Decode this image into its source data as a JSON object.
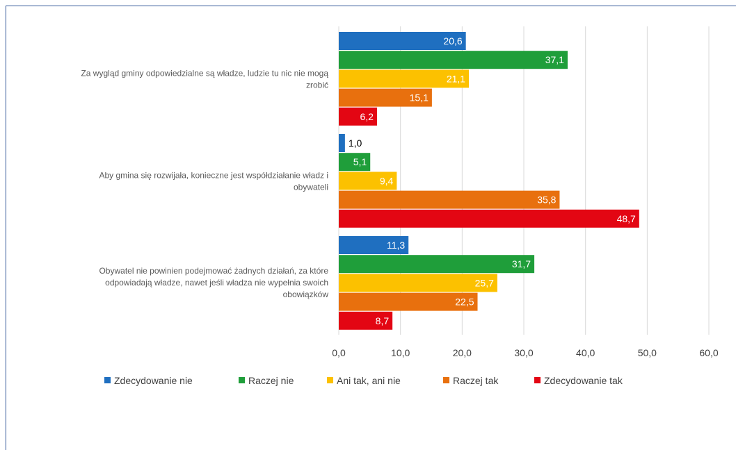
{
  "chart_data": {
    "type": "bar",
    "orientation": "horizontal",
    "categories": [
      "Za wygląd gminy odpowiedzialne są władze, ludzie tu nic nie mogą zrobić",
      "Aby gmina się rozwijała, konieczne jest współdziałanie władz i obywateli",
      "Obywatel nie powinien podejmować żadnych działań, za które odpowiadają władze, nawet jeśli władza nie wypełnia swoich obowiązków"
    ],
    "category_lines": [
      [
        "Za wygląd gminy odpowiedzialne są władze, ludzie tu nic nie mogą",
        "zrobić"
      ],
      [
        "Aby gmina się rozwijała, konieczne jest współdziałanie władz i",
        "obywateli"
      ],
      [
        "Obywatel nie powinien podejmować żadnych działań, za które",
        "odpowiadają władze, nawet jeśli władza nie wypełnia swoich",
        "obowiązków"
      ]
    ],
    "series": [
      {
        "name": "Zdecydowanie nie",
        "color": "#1f6fc0",
        "values": [
          20.6,
          1.0,
          11.3
        ],
        "labels": [
          "20,6",
          "1,0",
          "11,3"
        ]
      },
      {
        "name": "Raczej nie",
        "color": "#1f9e3a",
        "values": [
          37.1,
          5.1,
          31.7
        ],
        "labels": [
          "37,1",
          "5,1",
          "31,7"
        ]
      },
      {
        "name": "Ani tak, ani nie",
        "color": "#fcc100",
        "values": [
          21.1,
          9.4,
          25.7
        ],
        "labels": [
          "21,1",
          "9,4",
          "25,7"
        ]
      },
      {
        "name": "Raczej tak",
        "color": "#e8700e",
        "values": [
          15.1,
          35.8,
          22.5
        ],
        "labels": [
          "15,1",
          "35,8",
          "22,5"
        ]
      },
      {
        "name": "Zdecydowanie tak",
        "color": "#e30613",
        "values": [
          6.2,
          48.7,
          8.7
        ],
        "labels": [
          "6,2",
          "48,7",
          "8,7"
        ]
      }
    ],
    "xlim": [
      0,
      60
    ],
    "ticks": [
      0,
      10,
      20,
      30,
      40,
      50,
      60
    ],
    "tick_labels": [
      "0,0",
      "10,0",
      "20,0",
      "30,0",
      "40,0",
      "50,0",
      "60,0"
    ],
    "grid": true,
    "legend_position": "bottom",
    "title": "",
    "xlabel": "",
    "ylabel": ""
  }
}
